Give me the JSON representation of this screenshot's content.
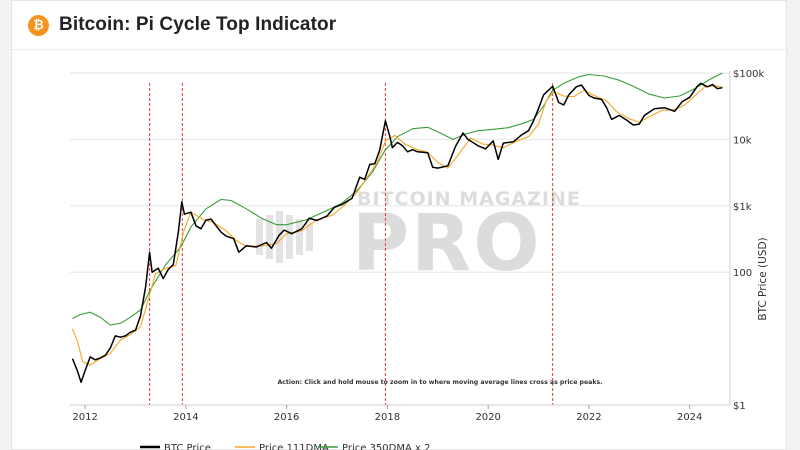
{
  "header": {
    "logo_symbol": "₿",
    "logo_icon": "bitcoin-logo-icon",
    "title": "Bitcoin: Pi Cycle Top Indicator"
  },
  "watermark": {
    "line1": "BITCOIN MAGAZINE",
    "line2": "PRO"
  },
  "annotation": "Action: Click and hold mouse to zoom in to where moving average lines cross as price peaks.",
  "colors": {
    "price": "#000000",
    "dma111": "#f5a623",
    "dma350x2": "#3a9c3a",
    "crossover": "#e53935",
    "grid": "#e6e6e6"
  },
  "chart_data": {
    "type": "line",
    "title": "Bitcoin: Pi Cycle Top Indicator",
    "ylabel": "BTC Price (USD)",
    "yscale": "log",
    "ylim": [
      1,
      100000
    ],
    "xlim": [
      2011.7,
      2024.8
    ],
    "y_ticks": [
      {
        "value": 1,
        "label": "$1"
      },
      {
        "value": 100,
        "label": "100"
      },
      {
        "value": 1000,
        "label": "$1k"
      },
      {
        "value": 10000,
        "label": "10k"
      },
      {
        "value": 100000,
        "label": "$100k"
      }
    ],
    "x_ticks": [
      {
        "value": 2012,
        "label": "2012"
      },
      {
        "value": 2014,
        "label": "2014"
      },
      {
        "value": 2016,
        "label": "2016"
      },
      {
        "value": 2018,
        "label": "2018"
      },
      {
        "value": 2020,
        "label": "2020"
      },
      {
        "value": 2022,
        "label": "2022"
      },
      {
        "value": 2024,
        "label": "2024"
      }
    ],
    "grid": true,
    "legend_position": "bottom",
    "crossovers": [
      2013.28,
      2013.93,
      2017.96,
      2021.28
    ],
    "series": [
      {
        "name": "BTC Price",
        "key": "price",
        "points": [
          [
            2011.75,
            5
          ],
          [
            2011.85,
            3.2
          ],
          [
            2011.92,
            2.2
          ],
          [
            2012.0,
            3.3
          ],
          [
            2012.1,
            5.3
          ],
          [
            2012.2,
            4.8
          ],
          [
            2012.3,
            5.1
          ],
          [
            2012.4,
            5.6
          ],
          [
            2012.5,
            7.2
          ],
          [
            2012.6,
            11
          ],
          [
            2012.7,
            10.5
          ],
          [
            2012.8,
            11
          ],
          [
            2012.9,
            12.5
          ],
          [
            2013.0,
            13.4
          ],
          [
            2013.1,
            22
          ],
          [
            2013.2,
            60
          ],
          [
            2013.28,
            200
          ],
          [
            2013.33,
            100
          ],
          [
            2013.45,
            115
          ],
          [
            2013.55,
            80
          ],
          [
            2013.65,
            110
          ],
          [
            2013.75,
            130
          ],
          [
            2013.85,
            400
          ],
          [
            2013.92,
            1150
          ],
          [
            2013.97,
            750
          ],
          [
            2014.1,
            800
          ],
          [
            2014.2,
            500
          ],
          [
            2014.3,
            450
          ],
          [
            2014.4,
            610
          ],
          [
            2014.5,
            630
          ],
          [
            2014.6,
            500
          ],
          [
            2014.7,
            400
          ],
          [
            2014.8,
            350
          ],
          [
            2014.95,
            320
          ],
          [
            2015.05,
            200
          ],
          [
            2015.2,
            250
          ],
          [
            2015.4,
            240
          ],
          [
            2015.6,
            280
          ],
          [
            2015.7,
            230
          ],
          [
            2015.85,
            360
          ],
          [
            2015.95,
            430
          ],
          [
            2016.1,
            380
          ],
          [
            2016.3,
            450
          ],
          [
            2016.45,
            650
          ],
          [
            2016.6,
            600
          ],
          [
            2016.8,
            700
          ],
          [
            2016.95,
            950
          ],
          [
            2017.1,
            1050
          ],
          [
            2017.3,
            1300
          ],
          [
            2017.45,
            2700
          ],
          [
            2017.55,
            2500
          ],
          [
            2017.65,
            4200
          ],
          [
            2017.75,
            4300
          ],
          [
            2017.85,
            7000
          ],
          [
            2017.96,
            19000
          ],
          [
            2018.05,
            11000
          ],
          [
            2018.1,
            7500
          ],
          [
            2018.2,
            9000
          ],
          [
            2018.3,
            8000
          ],
          [
            2018.4,
            6500
          ],
          [
            2018.5,
            7000
          ],
          [
            2018.6,
            6500
          ],
          [
            2018.8,
            6300
          ],
          [
            2018.9,
            3800
          ],
          [
            2019.0,
            3700
          ],
          [
            2019.2,
            4000
          ],
          [
            2019.35,
            7800
          ],
          [
            2019.5,
            12500
          ],
          [
            2019.6,
            10000
          ],
          [
            2019.8,
            8000
          ],
          [
            2019.95,
            7200
          ],
          [
            2020.1,
            9500
          ],
          [
            2020.2,
            5000
          ],
          [
            2020.3,
            8800
          ],
          [
            2020.5,
            9200
          ],
          [
            2020.65,
            11500
          ],
          [
            2020.8,
            13500
          ],
          [
            2020.9,
            19000
          ],
          [
            2021.0,
            29000
          ],
          [
            2021.1,
            47000
          ],
          [
            2021.28,
            63000
          ],
          [
            2021.4,
            36000
          ],
          [
            2021.5,
            33000
          ],
          [
            2021.6,
            47000
          ],
          [
            2021.75,
            62000
          ],
          [
            2021.85,
            66000
          ],
          [
            2022.0,
            46000
          ],
          [
            2022.1,
            42000
          ],
          [
            2022.25,
            40000
          ],
          [
            2022.35,
            30000
          ],
          [
            2022.45,
            20000
          ],
          [
            2022.6,
            23000
          ],
          [
            2022.75,
            19500
          ],
          [
            2022.88,
            16500
          ],
          [
            2023.0,
            17000
          ],
          [
            2023.1,
            23000
          ],
          [
            2023.3,
            29000
          ],
          [
            2023.5,
            30000
          ],
          [
            2023.7,
            26500
          ],
          [
            2023.85,
            37000
          ],
          [
            2024.0,
            43000
          ],
          [
            2024.15,
            63000
          ],
          [
            2024.22,
            70000
          ],
          [
            2024.35,
            62000
          ],
          [
            2024.45,
            67000
          ],
          [
            2024.55,
            58000
          ],
          [
            2024.65,
            60000
          ]
        ]
      },
      {
        "name": "Price 111DMA",
        "key": "dma111",
        "points": [
          [
            2011.75,
            14
          ],
          [
            2011.85,
            9
          ],
          [
            2011.95,
            4.5
          ],
          [
            2012.1,
            4
          ],
          [
            2012.3,
            5
          ],
          [
            2012.5,
            6
          ],
          [
            2012.7,
            9.5
          ],
          [
            2012.9,
            11.5
          ],
          [
            2013.1,
            15
          ],
          [
            2013.25,
            38
          ],
          [
            2013.4,
            95
          ],
          [
            2013.6,
            115
          ],
          [
            2013.8,
            125
          ],
          [
            2013.95,
            400
          ],
          [
            2014.1,
            800
          ],
          [
            2014.35,
            620
          ],
          [
            2014.55,
            560
          ],
          [
            2014.8,
            420
          ],
          [
            2015.0,
            300
          ],
          [
            2015.2,
            245
          ],
          [
            2015.5,
            250
          ],
          [
            2015.8,
            270
          ],
          [
            2016.0,
            380
          ],
          [
            2016.3,
            420
          ],
          [
            2016.6,
            620
          ],
          [
            2016.9,
            720
          ],
          [
            2017.1,
            950
          ],
          [
            2017.4,
            1600
          ],
          [
            2017.6,
            2700
          ],
          [
            2017.8,
            4500
          ],
          [
            2017.96,
            9500
          ],
          [
            2018.15,
            11500
          ],
          [
            2018.35,
            8500
          ],
          [
            2018.6,
            7000
          ],
          [
            2018.8,
            6400
          ],
          [
            2019.0,
            4500
          ],
          [
            2019.2,
            3700
          ],
          [
            2019.45,
            6500
          ],
          [
            2019.65,
            10500
          ],
          [
            2019.9,
            8500
          ],
          [
            2020.1,
            8200
          ],
          [
            2020.3,
            7500
          ],
          [
            2020.55,
            9300
          ],
          [
            2020.8,
            11000
          ],
          [
            2021.0,
            17000
          ],
          [
            2021.15,
            38000
          ],
          [
            2021.3,
            52000
          ],
          [
            2021.5,
            45000
          ],
          [
            2021.7,
            44000
          ],
          [
            2021.9,
            55000
          ],
          [
            2022.1,
            46000
          ],
          [
            2022.35,
            38000
          ],
          [
            2022.55,
            26000
          ],
          [
            2022.8,
            20500
          ],
          [
            2023.0,
            18000
          ],
          [
            2023.2,
            22000
          ],
          [
            2023.45,
            27500
          ],
          [
            2023.7,
            28000
          ],
          [
            2023.9,
            33000
          ],
          [
            2024.1,
            45000
          ],
          [
            2024.3,
            62000
          ],
          [
            2024.5,
            64000
          ],
          [
            2024.65,
            61000
          ]
        ]
      },
      {
        "name": "Price 350DMA x 2",
        "key": "dma350x2",
        "points": [
          [
            2011.75,
            20
          ],
          [
            2011.9,
            23
          ],
          [
            2012.1,
            25
          ],
          [
            2012.3,
            21
          ],
          [
            2012.5,
            16
          ],
          [
            2012.7,
            17
          ],
          [
            2012.9,
            21
          ],
          [
            2013.1,
            27
          ],
          [
            2013.3,
            55
          ],
          [
            2013.6,
            130
          ],
          [
            2013.9,
            240
          ],
          [
            2014.1,
            480
          ],
          [
            2014.4,
            900
          ],
          [
            2014.7,
            1250
          ],
          [
            2014.9,
            1200
          ],
          [
            2015.2,
            900
          ],
          [
            2015.5,
            650
          ],
          [
            2015.8,
            520
          ],
          [
            2016.0,
            520
          ],
          [
            2016.4,
            620
          ],
          [
            2016.8,
            850
          ],
          [
            2017.1,
            1100
          ],
          [
            2017.4,
            1700
          ],
          [
            2017.7,
            3200
          ],
          [
            2017.96,
            7000
          ],
          [
            2018.2,
            11000
          ],
          [
            2018.5,
            14500
          ],
          [
            2018.8,
            15200
          ],
          [
            2019.05,
            12500
          ],
          [
            2019.3,
            10000
          ],
          [
            2019.55,
            12000
          ],
          [
            2019.8,
            13500
          ],
          [
            2020.1,
            14200
          ],
          [
            2020.4,
            15000
          ],
          [
            2020.7,
            17500
          ],
          [
            2020.9,
            20000
          ],
          [
            2021.1,
            32000
          ],
          [
            2021.28,
            55000
          ],
          [
            2021.5,
            70000
          ],
          [
            2021.8,
            88000
          ],
          [
            2022.0,
            95000
          ],
          [
            2022.3,
            90000
          ],
          [
            2022.6,
            78000
          ],
          [
            2022.9,
            62000
          ],
          [
            2023.2,
            48000
          ],
          [
            2023.5,
            42000
          ],
          [
            2023.8,
            45000
          ],
          [
            2024.1,
            58000
          ],
          [
            2024.4,
            80000
          ],
          [
            2024.65,
            100000
          ]
        ]
      }
    ]
  }
}
